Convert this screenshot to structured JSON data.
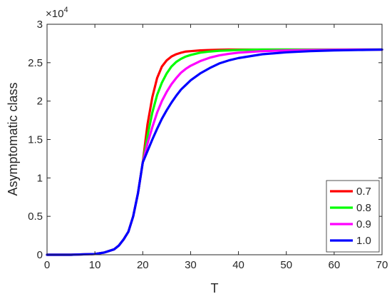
{
  "chart_data": {
    "type": "line",
    "xlabel": "T",
    "ylabel": "Asymptomatic class",
    "y_multiplier": {
      "base": "×10",
      "exponent": "4"
    },
    "xlim": [
      0,
      70
    ],
    "ylim": [
      0,
      3
    ],
    "x_ticks": [
      0,
      10,
      20,
      30,
      40,
      50,
      60,
      70
    ],
    "y_ticks": [
      0,
      0.5,
      1,
      1.5,
      2,
      2.5,
      3
    ],
    "x_tick_labels": [
      "0",
      "10",
      "20",
      "30",
      "40",
      "50",
      "60",
      "70"
    ],
    "y_tick_labels": [
      "0",
      "0.5",
      "1",
      "1.5",
      "2",
      "2.5",
      "3"
    ],
    "grid": false,
    "legend_position": "bottom-right",
    "series": [
      {
        "name": "0.7",
        "color": "#ff0000",
        "x": [
          0,
          5,
          10,
          12,
          14,
          15,
          16,
          17,
          18,
          19,
          20,
          21,
          22,
          23,
          24,
          25,
          26,
          27,
          28,
          29,
          30,
          32,
          34,
          36,
          38,
          40,
          45,
          50,
          55,
          60,
          65,
          70
        ],
        "y": [
          0,
          0,
          0.01,
          0.03,
          0.07,
          0.12,
          0.2,
          0.3,
          0.5,
          0.8,
          1.2,
          1.7,
          2.05,
          2.3,
          2.45,
          2.53,
          2.58,
          2.61,
          2.63,
          2.645,
          2.65,
          2.66,
          2.665,
          2.668,
          2.67,
          2.67,
          2.67,
          2.67,
          2.67,
          2.67,
          2.67,
          2.67
        ]
      },
      {
        "name": "0.8",
        "color": "#00ff00",
        "x": [
          0,
          5,
          10,
          12,
          14,
          15,
          16,
          17,
          18,
          19,
          20,
          21,
          22,
          23,
          24,
          25,
          26,
          27,
          28,
          29,
          30,
          32,
          34,
          36,
          38,
          40,
          45,
          50,
          55,
          60,
          65,
          70
        ],
        "y": [
          0,
          0,
          0.01,
          0.03,
          0.07,
          0.12,
          0.2,
          0.3,
          0.5,
          0.8,
          1.2,
          1.55,
          1.85,
          2.08,
          2.24,
          2.36,
          2.45,
          2.51,
          2.55,
          2.58,
          2.6,
          2.63,
          2.645,
          2.655,
          2.66,
          2.665,
          2.67,
          2.67,
          2.67,
          2.67,
          2.67,
          2.67
        ]
      },
      {
        "name": "0.9",
        "color": "#ff00ff",
        "x": [
          0,
          5,
          10,
          12,
          14,
          15,
          16,
          17,
          18,
          19,
          20,
          21,
          22,
          23,
          24,
          25,
          26,
          27,
          28,
          29,
          30,
          32,
          34,
          36,
          38,
          40,
          45,
          50,
          55,
          60,
          65,
          70
        ],
        "y": [
          0,
          0,
          0.01,
          0.03,
          0.07,
          0.12,
          0.2,
          0.3,
          0.5,
          0.8,
          1.2,
          1.45,
          1.66,
          1.85,
          2.0,
          2.12,
          2.22,
          2.3,
          2.37,
          2.42,
          2.46,
          2.52,
          2.565,
          2.595,
          2.615,
          2.63,
          2.65,
          2.66,
          2.665,
          2.668,
          2.67,
          2.67
        ]
      },
      {
        "name": "1.0",
        "color": "#0000ff",
        "x": [
          0,
          5,
          10,
          12,
          14,
          15,
          16,
          17,
          18,
          19,
          20,
          21,
          22,
          23,
          24,
          25,
          26,
          27,
          28,
          29,
          30,
          32,
          34,
          36,
          38,
          40,
          45,
          50,
          55,
          60,
          65,
          70
        ],
        "y": [
          0,
          0,
          0.01,
          0.03,
          0.07,
          0.12,
          0.2,
          0.3,
          0.5,
          0.8,
          1.2,
          1.35,
          1.5,
          1.64,
          1.77,
          1.88,
          1.98,
          2.07,
          2.15,
          2.21,
          2.27,
          2.36,
          2.43,
          2.49,
          2.53,
          2.56,
          2.61,
          2.635,
          2.65,
          2.66,
          2.665,
          2.67
        ]
      }
    ]
  }
}
